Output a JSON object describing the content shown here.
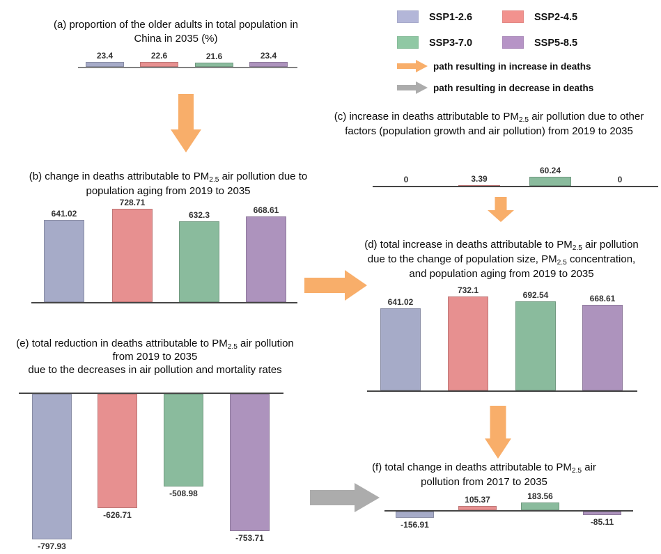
{
  "figure": {
    "description": "multi-panel flow figure of bar charts on deaths attributable to PM2.5 air pollution in China under four SSP scenarios",
    "scenarios": [
      "SSP1-2.6",
      "SSP2-4.5",
      "SSP3-7.0",
      "SSP5-8.5"
    ]
  },
  "colors": {
    "bar": {
      "SSP1-2.6": "#A6ABC8",
      "SSP2-4.5": "#E79090",
      "SSP3-7.0": "#8ABB9D",
      "SSP5-8.5": "#AD93BD"
    },
    "swatch": {
      "SSP1-2.6": "#B3B6D8",
      "SSP2-4.5": "#F2928E",
      "SSP3-7.0": "#90C8A4",
      "SSP5-8.5": "#B694C6"
    },
    "increase_arrow": "#F8AE6A",
    "decrease_arrow": "#ACACAC",
    "axis_default": "#454545",
    "axis_light": "#828282",
    "value_label": "#333333"
  },
  "legend": {
    "items": [
      {
        "label": "SSP1-2.6"
      },
      {
        "label": "SSP2-4.5"
      },
      {
        "label": "SSP3-7.0"
      },
      {
        "label": "SSP5-8.5"
      }
    ],
    "increase_arrow_label": "path resulting in increase in deaths",
    "decrease_arrow_label": "path resulting in decrease in deaths"
  },
  "chart_data": [
    {
      "id": "a",
      "type": "bar",
      "title": "(a) proportion of the older adults in total population in China in 2035 (%)",
      "title_lines": [
        "(a) proportion of the older adults in total population in",
        "China in 2035 (%)"
      ],
      "categories": [
        "SSP1-2.6",
        "SSP2-4.5",
        "SSP3-7.0",
        "SSP5-8.5"
      ],
      "values": [
        23.4,
        22.6,
        21.6,
        23.4
      ],
      "value_labels": [
        "23.4",
        "22.6",
        "21.6",
        "23.4"
      ],
      "unit": "%",
      "baseline": 0
    },
    {
      "id": "b",
      "type": "bar",
      "title": "(b) change in deaths attributable to PM2.5 air pollution due to population aging from 2019 to 2035",
      "title_lines": [
        "(b) change in deaths attributable to PM~2.5~ air pollution due to",
        "population aging from 2019 to 2035"
      ],
      "categories": [
        "SSP1-2.6",
        "SSP2-4.5",
        "SSP3-7.0",
        "SSP5-8.5"
      ],
      "values": [
        641.02,
        728.71,
        632.3,
        668.61
      ],
      "value_labels": [
        "641.02",
        "728.71",
        "632.3",
        "668.61"
      ],
      "unit": "deaths",
      "baseline": 0
    },
    {
      "id": "c",
      "type": "bar",
      "title": "(c) increase in deaths attributable to PM2.5 air pollution due to other factors (population growth and air pollution) from 2019 to 2035",
      "title_lines": [
        "(c) increase in deaths attributable to PM~2.5~ air pollution due to other",
        "factors (population growth and air pollution) from 2019 to 2035"
      ],
      "categories": [
        "SSP1-2.6",
        "SSP2-4.5",
        "SSP3-7.0",
        "SSP5-8.5"
      ],
      "values": [
        0,
        3.39,
        60.24,
        0
      ],
      "value_labels": [
        "0",
        "3.39",
        "60.24",
        "0"
      ],
      "unit": "deaths",
      "baseline": 0
    },
    {
      "id": "d",
      "type": "bar",
      "title": "(d) total increase in deaths attributable to PM2.5 air pollution due to the change of population size, PM2.5 concentration, and population aging from 2019 to 2035",
      "title_lines": [
        "(d) total increase in deaths attributable to PM~2.5~ air pollution",
        "due to the change of  population size, PM~2.5~ concentration,",
        "and population aging from 2019 to 2035"
      ],
      "categories": [
        "SSP1-2.6",
        "SSP2-4.5",
        "SSP3-7.0",
        "SSP5-8.5"
      ],
      "values": [
        641.02,
        732.1,
        692.54,
        668.61
      ],
      "value_labels": [
        "641.02",
        "732.1",
        "692.54",
        "668.61"
      ],
      "unit": "deaths",
      "baseline": 0
    },
    {
      "id": "e",
      "type": "bar",
      "title": "(e) total reduction in deaths attributable to PM2.5 air pollution from 2019 to 2035 due to the decreases in air pollution and mortality rates",
      "title_lines": [
        "(e) total reduction in deaths attributable to PM~2.5~ air pollution",
        "from 2019 to 2035",
        "due to the decreases in air pollution and mortality rates"
      ],
      "categories": [
        "SSP1-2.6",
        "SSP2-4.5",
        "SSP3-7.0",
        "SSP5-8.5"
      ],
      "values": [
        -797.93,
        -626.71,
        -508.98,
        -753.71
      ],
      "value_labels": [
        "-797.93",
        "-626.71",
        "-508.98",
        "-753.71"
      ],
      "unit": "deaths",
      "baseline": 0
    },
    {
      "id": "f",
      "type": "bar",
      "title": "(f) total change in deaths attributable to PM2.5 air pollution from 2017 to 2035",
      "title_lines": [
        "(f) total change in deaths attributable to PM~2.5~ air",
        "pollution from 2017 to 2035"
      ],
      "categories": [
        "SSP1-2.6",
        "SSP2-4.5",
        "SSP3-7.0",
        "SSP5-8.5"
      ],
      "values": [
        -156.91,
        105.37,
        183.56,
        -85.11
      ],
      "value_labels": [
        "-156.91",
        "105.37",
        "183.56",
        "-85.11"
      ],
      "unit": "deaths",
      "baseline": 0
    }
  ],
  "flow_arrows": [
    {
      "id": "a-to-b",
      "direction": "down",
      "meaning": "increase"
    },
    {
      "id": "b-to-d",
      "direction": "right",
      "meaning": "increase"
    },
    {
      "id": "c-to-d",
      "direction": "down",
      "meaning": "increase"
    },
    {
      "id": "d-to-f",
      "direction": "down",
      "meaning": "increase"
    },
    {
      "id": "e-to-f",
      "direction": "right",
      "meaning": "decrease"
    }
  ]
}
